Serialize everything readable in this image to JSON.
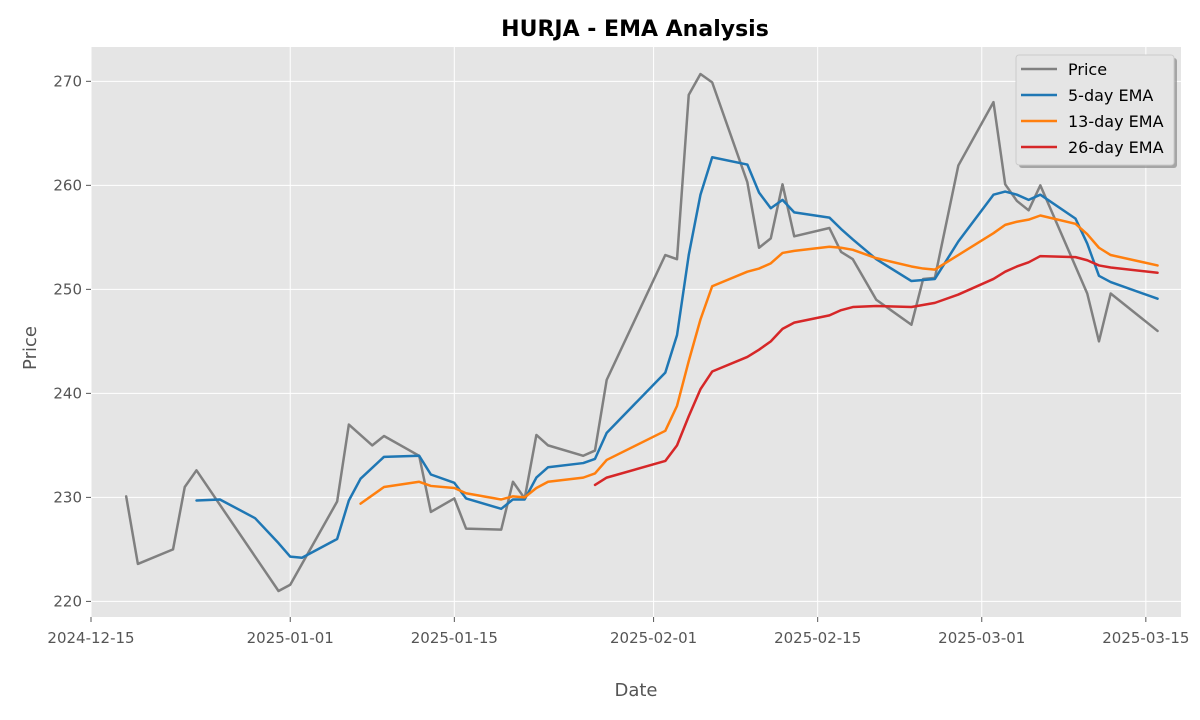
{
  "chart_data": {
    "type": "line",
    "title": "HURJA - EMA Analysis",
    "xlabel": "Date",
    "ylabel": "Price",
    "x_type": "date",
    "xlim": [
      "2024-12-15",
      "2025-03-18"
    ],
    "ylim": [
      218.5,
      273.3
    ],
    "x_ticks": [
      "2024-12-15",
      "2025-01-01",
      "2025-01-15",
      "2025-02-01",
      "2025-02-15",
      "2025-03-01",
      "2025-03-15"
    ],
    "x_tick_labels": [
      "2024-12-15",
      "2025-01-01",
      "2025-01-15",
      "2025-02-01",
      "2025-02-15",
      "2025-03-01",
      "2025-03-15"
    ],
    "y_ticks": [
      220,
      230,
      240,
      250,
      260,
      270
    ],
    "y_tick_labels": [
      "220",
      "230",
      "240",
      "250",
      "260",
      "270"
    ],
    "grid": true,
    "legend_position": "top-right",
    "background": "#e5e5e5",
    "series": [
      {
        "name": "Price",
        "color": "#808080",
        "points": [
          [
            "2024-12-18",
            230.1
          ],
          [
            "2024-12-19",
            223.6
          ],
          [
            "2024-12-22",
            225.0
          ],
          [
            "2024-12-23",
            231.0
          ],
          [
            "2024-12-24",
            232.6
          ],
          [
            "2024-12-31",
            221.0
          ],
          [
            "2025-01-01",
            221.6
          ],
          [
            "2025-01-05",
            229.6
          ],
          [
            "2025-01-06",
            237.0
          ],
          [
            "2025-01-08",
            235.0
          ],
          [
            "2025-01-09",
            235.9
          ],
          [
            "2025-01-12",
            234.0
          ],
          [
            "2025-01-13",
            228.6
          ],
          [
            "2025-01-15",
            229.9
          ],
          [
            "2025-01-16",
            227.0
          ],
          [
            "2025-01-19",
            226.9
          ],
          [
            "2025-01-20",
            231.5
          ],
          [
            "2025-01-21",
            229.9
          ],
          [
            "2025-01-22",
            236.0
          ],
          [
            "2025-01-23",
            235.0
          ],
          [
            "2025-01-26",
            234.0
          ],
          [
            "2025-01-27",
            234.5
          ],
          [
            "2025-01-28",
            241.3
          ],
          [
            "2025-02-02",
            253.3
          ],
          [
            "2025-02-03",
            252.9
          ],
          [
            "2025-02-04",
            268.7
          ],
          [
            "2025-02-05",
            270.7
          ],
          [
            "2025-02-06",
            269.9
          ],
          [
            "2025-02-09",
            260.3
          ],
          [
            "2025-02-10",
            254.0
          ],
          [
            "2025-02-11",
            254.9
          ],
          [
            "2025-02-12",
            260.1
          ],
          [
            "2025-02-13",
            255.1
          ],
          [
            "2025-02-16",
            255.9
          ],
          [
            "2025-02-17",
            253.6
          ],
          [
            "2025-02-18",
            252.9
          ],
          [
            "2025-02-20",
            249.0
          ],
          [
            "2025-02-23",
            246.6
          ],
          [
            "2025-02-24",
            251.0
          ],
          [
            "2025-02-25",
            251.1
          ],
          [
            "2025-02-27",
            261.9
          ],
          [
            "2025-03-02",
            268.0
          ],
          [
            "2025-03-03",
            260.1
          ],
          [
            "2025-03-04",
            258.5
          ],
          [
            "2025-03-05",
            257.6
          ],
          [
            "2025-03-06",
            260.0
          ],
          [
            "2025-03-10",
            249.6
          ],
          [
            "2025-03-11",
            245.0
          ],
          [
            "2025-03-12",
            249.6
          ],
          [
            "2025-03-16",
            246.0
          ]
        ]
      },
      {
        "name": "5-day EMA",
        "color": "#1f77b4",
        "points": [
          [
            "2024-12-24",
            229.7
          ],
          [
            "2024-12-26",
            229.8
          ],
          [
            "2024-12-29",
            228.0
          ],
          [
            "2024-12-31",
            225.6
          ],
          [
            "2025-01-01",
            224.3
          ],
          [
            "2025-01-02",
            224.2
          ],
          [
            "2025-01-05",
            226.0
          ],
          [
            "2025-01-06",
            229.7
          ],
          [
            "2025-01-07",
            231.8
          ],
          [
            "2025-01-09",
            233.9
          ],
          [
            "2025-01-12",
            234.0
          ],
          [
            "2025-01-13",
            232.2
          ],
          [
            "2025-01-15",
            231.4
          ],
          [
            "2025-01-16",
            229.9
          ],
          [
            "2025-01-19",
            228.9
          ],
          [
            "2025-01-20",
            229.8
          ],
          [
            "2025-01-21",
            229.8
          ],
          [
            "2025-01-22",
            231.9
          ],
          [
            "2025-01-23",
            232.9
          ],
          [
            "2025-01-26",
            233.3
          ],
          [
            "2025-01-27",
            233.7
          ],
          [
            "2025-01-28",
            236.2
          ],
          [
            "2025-02-02",
            242.0
          ],
          [
            "2025-02-03",
            245.6
          ],
          [
            "2025-02-04",
            253.3
          ],
          [
            "2025-02-05",
            259.1
          ],
          [
            "2025-02-06",
            262.7
          ],
          [
            "2025-02-09",
            262.0
          ],
          [
            "2025-02-10",
            259.3
          ],
          [
            "2025-02-11",
            257.8
          ],
          [
            "2025-02-12",
            258.6
          ],
          [
            "2025-02-13",
            257.4
          ],
          [
            "2025-02-16",
            256.9
          ],
          [
            "2025-02-17",
            255.8
          ],
          [
            "2025-02-18",
            254.8
          ],
          [
            "2025-02-20",
            252.9
          ],
          [
            "2025-02-23",
            250.8
          ],
          [
            "2025-02-24",
            250.9
          ],
          [
            "2025-02-25",
            251.0
          ],
          [
            "2025-02-27",
            254.6
          ],
          [
            "2025-03-02",
            259.1
          ],
          [
            "2025-03-03",
            259.4
          ],
          [
            "2025-03-04",
            259.1
          ],
          [
            "2025-03-05",
            258.6
          ],
          [
            "2025-03-06",
            259.1
          ],
          [
            "2025-03-09",
            256.8
          ],
          [
            "2025-03-10",
            254.4
          ],
          [
            "2025-03-11",
            251.3
          ],
          [
            "2025-03-12",
            250.7
          ],
          [
            "2025-03-16",
            249.1
          ]
        ]
      },
      {
        "name": "13-day EMA",
        "color": "#ff7f0e",
        "points": [
          [
            "2025-01-07",
            229.4
          ],
          [
            "2025-01-09",
            231.0
          ],
          [
            "2025-01-12",
            231.5
          ],
          [
            "2025-01-13",
            231.1
          ],
          [
            "2025-01-15",
            230.9
          ],
          [
            "2025-01-16",
            230.4
          ],
          [
            "2025-01-19",
            229.8
          ],
          [
            "2025-01-20",
            230.1
          ],
          [
            "2025-01-21",
            230.0
          ],
          [
            "2025-01-22",
            230.9
          ],
          [
            "2025-01-23",
            231.5
          ],
          [
            "2025-01-26",
            231.9
          ],
          [
            "2025-01-27",
            232.3
          ],
          [
            "2025-01-28",
            233.6
          ],
          [
            "2025-02-02",
            236.4
          ],
          [
            "2025-02-03",
            238.8
          ],
          [
            "2025-02-04",
            243.1
          ],
          [
            "2025-02-05",
            247.1
          ],
          [
            "2025-02-06",
            250.3
          ],
          [
            "2025-02-09",
            251.7
          ],
          [
            "2025-02-10",
            252.0
          ],
          [
            "2025-02-11",
            252.5
          ],
          [
            "2025-02-12",
            253.5
          ],
          [
            "2025-02-13",
            253.7
          ],
          [
            "2025-02-16",
            254.1
          ],
          [
            "2025-02-17",
            254.0
          ],
          [
            "2025-02-18",
            253.8
          ],
          [
            "2025-02-20",
            253.0
          ],
          [
            "2025-02-23",
            252.2
          ],
          [
            "2025-02-24",
            252.0
          ],
          [
            "2025-02-25",
            251.9
          ],
          [
            "2025-02-27",
            253.3
          ],
          [
            "2025-03-02",
            255.4
          ],
          [
            "2025-03-03",
            256.2
          ],
          [
            "2025-03-04",
            256.5
          ],
          [
            "2025-03-05",
            256.7
          ],
          [
            "2025-03-06",
            257.1
          ],
          [
            "2025-03-09",
            256.3
          ],
          [
            "2025-03-10",
            255.3
          ],
          [
            "2025-03-11",
            254.0
          ],
          [
            "2025-03-12",
            253.3
          ],
          [
            "2025-03-16",
            252.3
          ]
        ]
      },
      {
        "name": "26-day EMA",
        "color": "#d62728",
        "points": [
          [
            "2025-01-27",
            231.2
          ],
          [
            "2025-01-28",
            231.9
          ],
          [
            "2025-02-02",
            233.5
          ],
          [
            "2025-02-03",
            235.0
          ],
          [
            "2025-02-04",
            237.8
          ],
          [
            "2025-02-05",
            240.4
          ],
          [
            "2025-02-06",
            242.1
          ],
          [
            "2025-02-09",
            243.5
          ],
          [
            "2025-02-10",
            244.2
          ],
          [
            "2025-02-11",
            245.0
          ],
          [
            "2025-02-12",
            246.2
          ],
          [
            "2025-02-13",
            246.8
          ],
          [
            "2025-02-16",
            247.5
          ],
          [
            "2025-02-17",
            248.0
          ],
          [
            "2025-02-18",
            248.3
          ],
          [
            "2025-02-20",
            248.4
          ],
          [
            "2025-02-23",
            248.3
          ],
          [
            "2025-02-25",
            248.7
          ],
          [
            "2025-02-27",
            249.5
          ],
          [
            "2025-03-02",
            251.0
          ],
          [
            "2025-03-03",
            251.7
          ],
          [
            "2025-03-04",
            252.2
          ],
          [
            "2025-03-05",
            252.6
          ],
          [
            "2025-03-06",
            253.2
          ],
          [
            "2025-03-09",
            253.1
          ],
          [
            "2025-03-10",
            252.8
          ],
          [
            "2025-03-11",
            252.3
          ],
          [
            "2025-03-12",
            252.1
          ],
          [
            "2025-03-16",
            251.6
          ]
        ]
      }
    ]
  }
}
